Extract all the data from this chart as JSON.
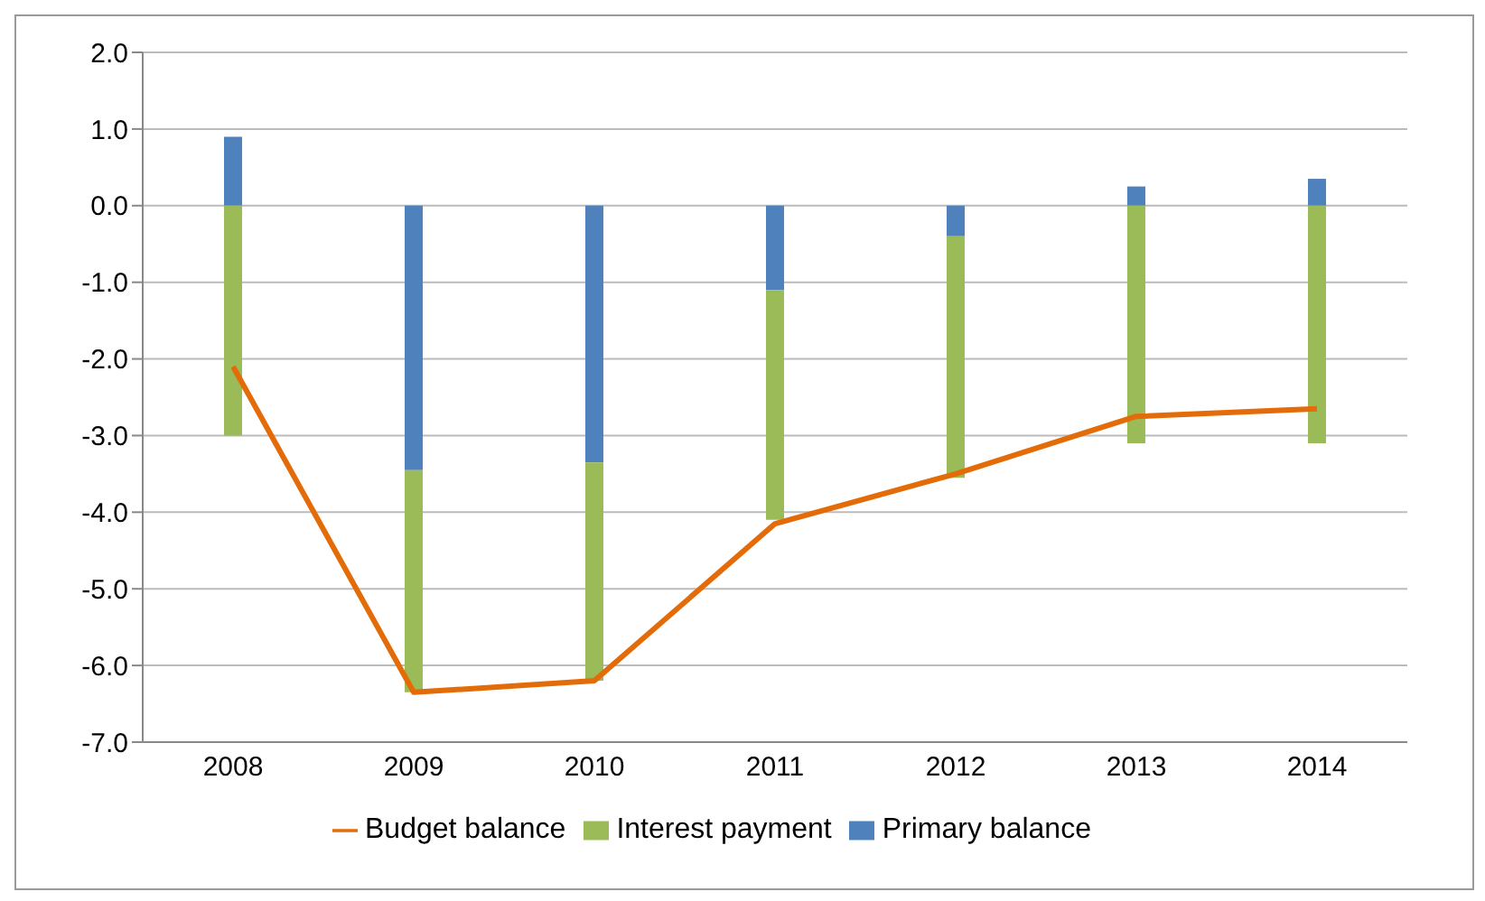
{
  "chart_data": {
    "type": "bar",
    "stacked": true,
    "categories": [
      "2008",
      "2009",
      "2010",
      "2011",
      "2012",
      "2013",
      "2014"
    ],
    "series": [
      {
        "name": "Primary balance",
        "color": "#4f81bd",
        "values": [
          0.9,
          -3.45,
          -3.35,
          -1.1,
          -0.4,
          0.25,
          0.35
        ]
      },
      {
        "name": "Interest payment",
        "color": "#9bbb59",
        "values": [
          -3.0,
          -2.9,
          -2.85,
          -3.0,
          -3.15,
          -3.1,
          -3.1
        ]
      },
      {
        "name": "Budget balance",
        "type": "line",
        "color": "#e36c09",
        "values": [
          -2.1,
          -6.35,
          -6.2,
          -4.15,
          -3.5,
          -2.75,
          -2.65
        ]
      }
    ],
    "ylim": [
      -7,
      2
    ],
    "yticks": [
      {
        "value": -7,
        "label": "-7.0"
      },
      {
        "value": -6,
        "label": "-6.0"
      },
      {
        "value": -5,
        "label": "-5.0"
      },
      {
        "value": -4,
        "label": "-4.0"
      },
      {
        "value": -3,
        "label": "-3.0"
      },
      {
        "value": -2,
        "label": "-2.0"
      },
      {
        "value": -1,
        "label": "-1.0"
      },
      {
        "value": 0,
        "label": "0.0"
      },
      {
        "value": 1,
        "label": "1.0"
      },
      {
        "value": 2,
        "label": "2.0"
      }
    ],
    "grid": "y",
    "legend": "bottom",
    "marker": "none"
  }
}
